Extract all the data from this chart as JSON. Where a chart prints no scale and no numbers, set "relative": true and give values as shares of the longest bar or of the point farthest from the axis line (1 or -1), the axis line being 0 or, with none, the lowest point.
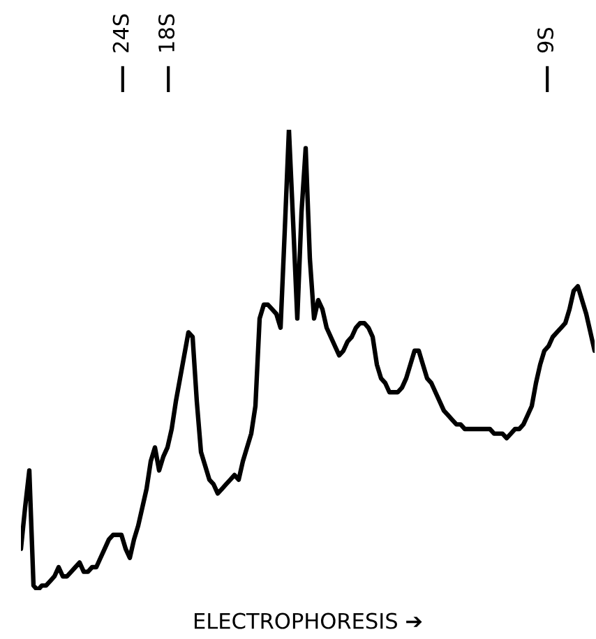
{
  "chart_data": {
    "type": "line",
    "relative": true,
    "xlabel": "ELECTROPHORESIS ➔",
    "categories": [
      null,
      null,
      null,
      null,
      null,
      null,
      null,
      null,
      null,
      null,
      null,
      null,
      null,
      null,
      null,
      null,
      null,
      null,
      null,
      null,
      null,
      null,
      null,
      null,
      null,
      null,
      null,
      null,
      null,
      null,
      null,
      null,
      null,
      null,
      null,
      null,
      null,
      null,
      null,
      null,
      null,
      null,
      null,
      null,
      null,
      null,
      null,
      null,
      null,
      null,
      null,
      null,
      null,
      null,
      null,
      null,
      null,
      null,
      null,
      null,
      null,
      null,
      null,
      null,
      null,
      null,
      null,
      null,
      null,
      null,
      null,
      null,
      null,
      null,
      null,
      null,
      null,
      null,
      null,
      null,
      null,
      null,
      null,
      null,
      null,
      null,
      null,
      null,
      null,
      null,
      null,
      null,
      null,
      null,
      null,
      null,
      null,
      null,
      null,
      null,
      null,
      null,
      null,
      null,
      null,
      null,
      null,
      null,
      null,
      null,
      null,
      null,
      null,
      null,
      null,
      null,
      null,
      null,
      null,
      null,
      null,
      null,
      null,
      null,
      null,
      null,
      null,
      null,
      null,
      null,
      null,
      null,
      null,
      null,
      null,
      null,
      null,
      null
    ],
    "series": [
      {
        "color": "#000000",
        "values": [
          0.09,
          0.18,
          0.26,
          0.01,
          0.0,
          0.01,
          0.01,
          0.02,
          0.03,
          0.05,
          0.03,
          0.03,
          0.04,
          0.05,
          0.06,
          0.04,
          0.04,
          0.05,
          0.05,
          0.07,
          0.09,
          0.11,
          0.12,
          0.12,
          0.12,
          0.09,
          0.07,
          0.11,
          0.14,
          0.18,
          0.22,
          0.28,
          0.31,
          0.26,
          0.29,
          0.31,
          0.35,
          0.41,
          0.46,
          0.51,
          0.56,
          0.55,
          0.41,
          0.3,
          0.27,
          0.24,
          0.23,
          0.21,
          0.22,
          0.23,
          0.24,
          0.25,
          0.24,
          0.28,
          0.31,
          0.34,
          0.4,
          0.59,
          0.62,
          0.62,
          0.61,
          0.6,
          0.57,
          0.78,
          1.0,
          0.8,
          0.59,
          0.82,
          0.96,
          0.72,
          0.59,
          0.63,
          0.61,
          0.57,
          0.55,
          0.53,
          0.51,
          0.52,
          0.54,
          0.55,
          0.57,
          0.58,
          0.58,
          0.57,
          0.55,
          0.49,
          0.46,
          0.45,
          0.43,
          0.43,
          0.43,
          0.44,
          0.46,
          0.49,
          0.52,
          0.52,
          0.49,
          0.46,
          0.45,
          0.43,
          0.41,
          0.39,
          0.38,
          0.37,
          0.36,
          0.36,
          0.35,
          0.35,
          0.35,
          0.35,
          0.35,
          0.35,
          0.35,
          0.34,
          0.34,
          0.34,
          0.33,
          0.34,
          0.35,
          0.35,
          0.36,
          0.38,
          0.4,
          0.45,
          0.49,
          0.52,
          0.53,
          0.55,
          0.56,
          0.57,
          0.58,
          0.61,
          0.65,
          0.66,
          0.63,
          0.6,
          0.56,
          0.52
        ]
      }
    ],
    "annotations": [
      "24S",
      "18S",
      "9S"
    ],
    "grid": false,
    "legend": false,
    "marker": "none",
    "line_style": "solid"
  }
}
